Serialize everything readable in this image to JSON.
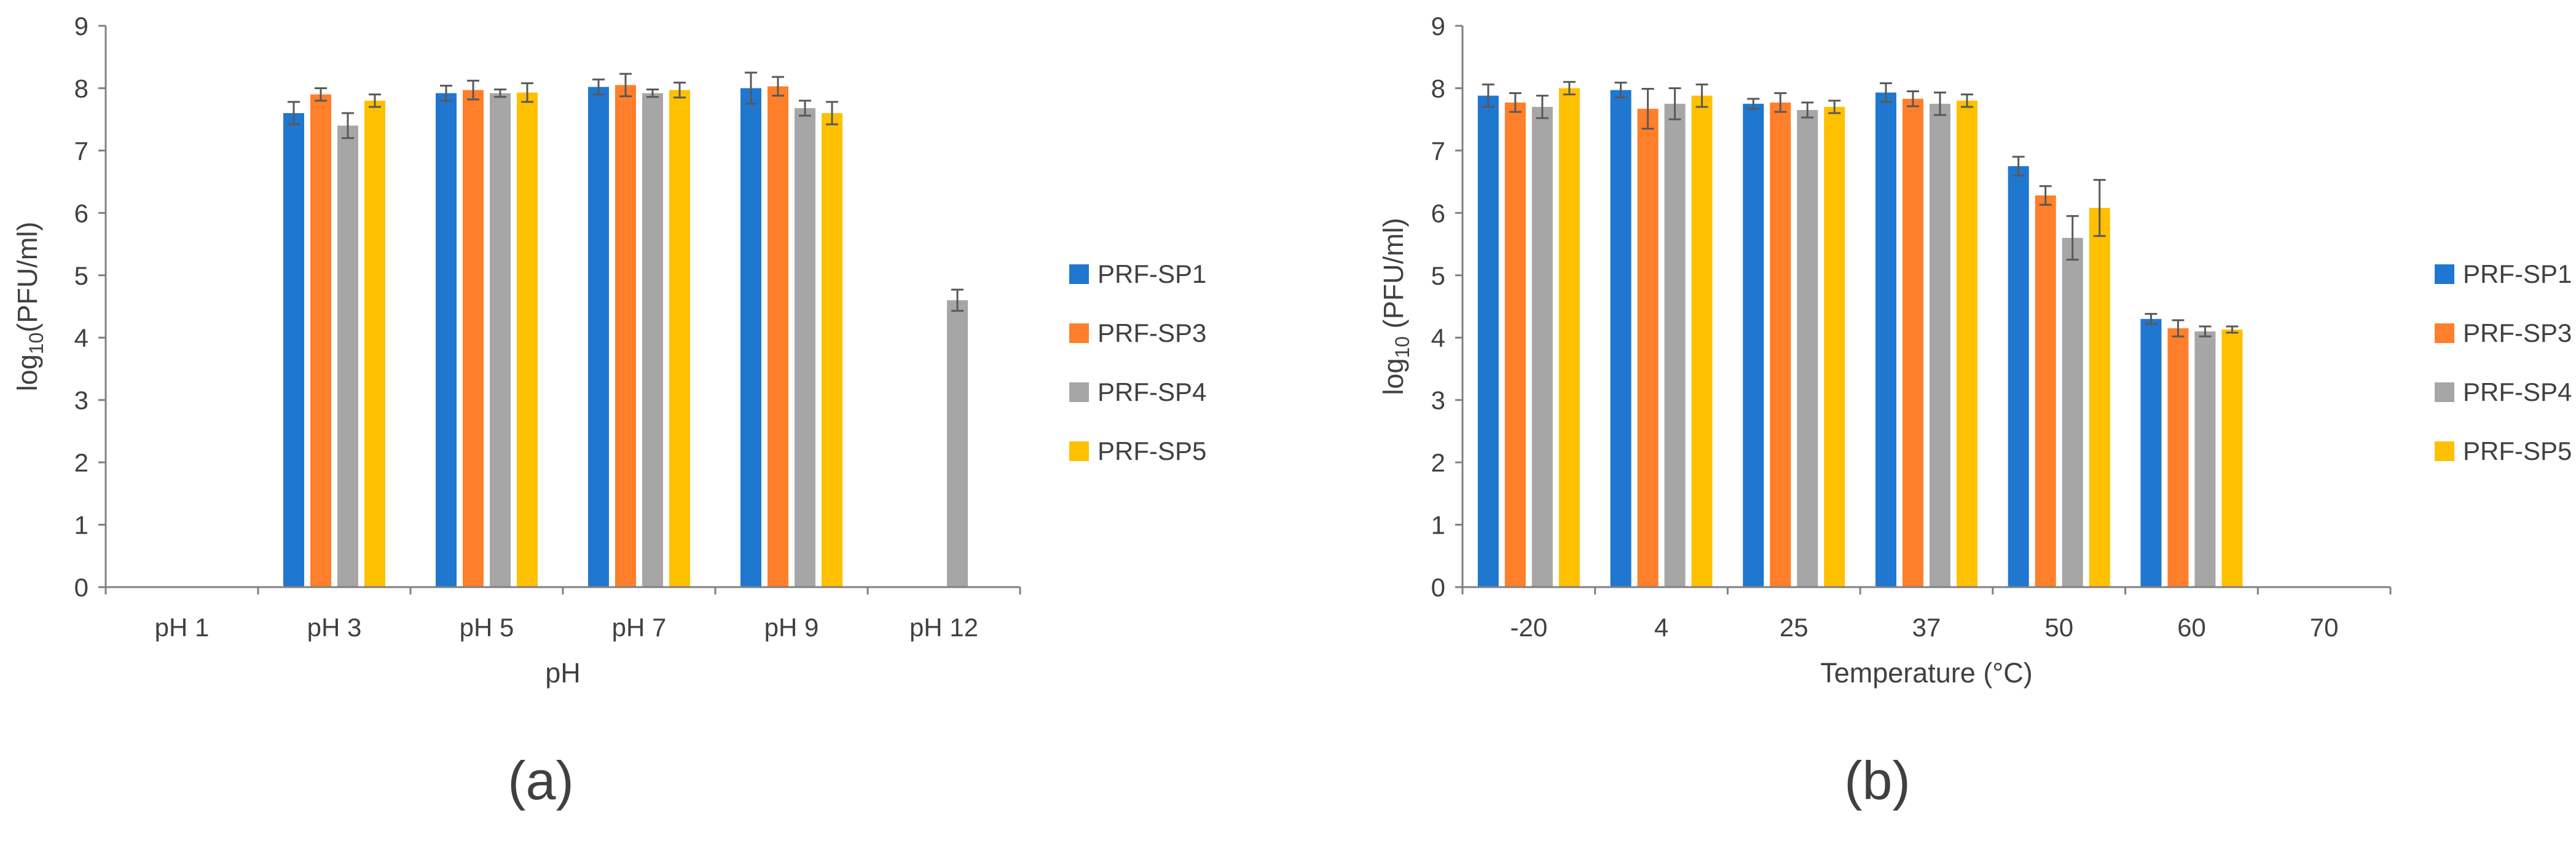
{
  "colors": {
    "PRF-SP1": "#1f77d0",
    "PRF-SP3": "#ff7f2a",
    "PRF-SP4": "#a6a6a6",
    "PRF-SP5": "#ffc000",
    "axis": "#808080",
    "text": "#404040",
    "error_bar": "#595959"
  },
  "panels": [
    {
      "label": "(a)"
    },
    {
      "label": "(b)"
    }
  ],
  "chart_data": [
    {
      "type": "bar",
      "panel_label": "(a)",
      "title": "",
      "xlabel": "pH",
      "ylabel_prefix": "log",
      "ylabel_sub": "10",
      "ylabel_suffix": "(PFU/ml)",
      "ylim": [
        0,
        9
      ],
      "yticks": [
        "0",
        "1",
        "2",
        "3",
        "4",
        "5",
        "6",
        "7",
        "8",
        "9"
      ],
      "grid": false,
      "legend_position": "right",
      "categories": [
        "pH 1",
        "pH 3",
        "pH 5",
        "pH 7",
        "pH 9",
        "pH 12"
      ],
      "series": [
        {
          "name": "PRF-SP1",
          "values": [
            null,
            7.6,
            7.92,
            8.02,
            8.0,
            null
          ],
          "errors": [
            null,
            0.18,
            0.12,
            0.12,
            0.25,
            null
          ]
        },
        {
          "name": "PRF-SP3",
          "values": [
            null,
            7.9,
            7.97,
            8.05,
            8.03,
            null
          ],
          "errors": [
            null,
            0.1,
            0.15,
            0.18,
            0.15,
            null
          ]
        },
        {
          "name": "PRF-SP4",
          "values": [
            null,
            7.4,
            7.92,
            7.92,
            7.68,
            4.6
          ],
          "errors": [
            null,
            0.2,
            0.06,
            0.06,
            0.12,
            0.17
          ]
        },
        {
          "name": "PRF-SP5",
          "values": [
            null,
            7.8,
            7.93,
            7.97,
            7.6,
            null
          ],
          "errors": [
            null,
            0.1,
            0.15,
            0.12,
            0.18,
            null
          ]
        }
      ]
    },
    {
      "type": "bar",
      "panel_label": "(b)",
      "title": "",
      "xlabel": "Temperature (°C)",
      "ylabel_prefix": "log",
      "ylabel_sub": "10",
      "ylabel_suffix": " (PFU/ml)",
      "ylim": [
        0,
        9
      ],
      "yticks": [
        "0",
        "1",
        "2",
        "3",
        "4",
        "5",
        "6",
        "7",
        "8",
        "9"
      ],
      "grid": false,
      "legend_position": "right",
      "categories": [
        "-20",
        "4",
        "25",
        "37",
        "50",
        "60",
        "70"
      ],
      "series": [
        {
          "name": "PRF-SP1",
          "values": [
            7.88,
            7.97,
            7.75,
            7.93,
            6.75,
            4.3,
            null
          ],
          "errors": [
            0.18,
            0.12,
            0.08,
            0.15,
            0.15,
            0.08,
            null
          ]
        },
        {
          "name": "PRF-SP3",
          "values": [
            7.77,
            7.67,
            7.77,
            7.83,
            6.28,
            4.15,
            null
          ],
          "errors": [
            0.15,
            0.32,
            0.15,
            0.12,
            0.15,
            0.13,
            null
          ]
        },
        {
          "name": "PRF-SP4",
          "values": [
            7.7,
            7.75,
            7.65,
            7.75,
            5.6,
            4.1,
            null
          ],
          "errors": [
            0.18,
            0.25,
            0.12,
            0.18,
            0.35,
            0.08,
            null
          ]
        },
        {
          "name": "PRF-SP5",
          "values": [
            8.0,
            7.88,
            7.7,
            7.8,
            6.08,
            4.13,
            null
          ],
          "errors": [
            0.1,
            0.18,
            0.1,
            0.1,
            0.45,
            0.05,
            null
          ]
        }
      ]
    }
  ]
}
